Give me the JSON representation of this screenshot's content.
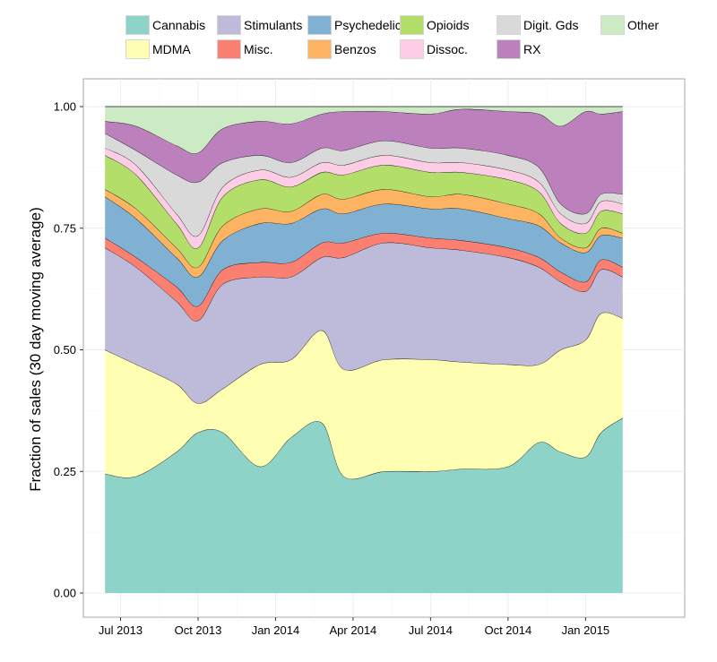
{
  "chart_data": {
    "type": "area",
    "stacked": true,
    "normalized": true,
    "title": "",
    "xlabel": "",
    "ylabel": "Fraction of sales (30 day moving average)",
    "ylim": [
      0,
      1
    ],
    "yticks": [
      0.0,
      0.25,
      0.5,
      0.75,
      1.0
    ],
    "ytick_labels": [
      "0.00",
      "0.25",
      "0.50",
      "0.75",
      "1.00"
    ],
    "xlim": [
      2013.38,
      2015.32
    ],
    "xticks": [
      2013.5,
      2013.75,
      2014.0,
      2014.25,
      2014.5,
      2014.75,
      2015.0
    ],
    "xtick_labels": [
      "Jul 2013",
      "Oct 2013",
      "Jan 2014",
      "Apr 2014",
      "Jul 2014",
      "Oct 2014",
      "Jan 2015"
    ],
    "x": [
      2013.45,
      2013.55,
      2013.68,
      2013.75,
      2013.83,
      2013.95,
      2014.05,
      2014.15,
      2014.22,
      2014.35,
      2014.5,
      2014.6,
      2014.75,
      2014.85,
      2014.92,
      2015.0,
      2015.05,
      2015.12
    ],
    "legend_position": "top",
    "series": [
      {
        "name": "Cannabis",
        "color": "#8dd3c7",
        "values": [
          0.245,
          0.24,
          0.29,
          0.33,
          0.33,
          0.26,
          0.32,
          0.35,
          0.24,
          0.25,
          0.25,
          0.255,
          0.26,
          0.31,
          0.29,
          0.28,
          0.33,
          0.36
        ]
      },
      {
        "name": "MDMA",
        "color": "#ffffb3",
        "values": [
          0.255,
          0.23,
          0.14,
          0.06,
          0.09,
          0.21,
          0.16,
          0.19,
          0.22,
          0.23,
          0.23,
          0.22,
          0.21,
          0.16,
          0.21,
          0.24,
          0.245,
          0.205
        ]
      },
      {
        "name": "Stimulants",
        "color": "#bebada",
        "values": [
          0.21,
          0.2,
          0.17,
          0.17,
          0.215,
          0.18,
          0.17,
          0.15,
          0.23,
          0.24,
          0.23,
          0.23,
          0.22,
          0.2,
          0.14,
          0.1,
          0.09,
          0.085
        ]
      },
      {
        "name": "Misc.",
        "color": "#fb8072",
        "values": [
          0.02,
          0.02,
          0.03,
          0.03,
          0.03,
          0.03,
          0.03,
          0.03,
          0.03,
          0.02,
          0.02,
          0.02,
          0.02,
          0.02,
          0.02,
          0.02,
          0.02,
          0.02
        ]
      },
      {
        "name": "Psychedelics",
        "color": "#80b1d3",
        "values": [
          0.085,
          0.08,
          0.06,
          0.06,
          0.06,
          0.08,
          0.08,
          0.07,
          0.06,
          0.06,
          0.06,
          0.065,
          0.06,
          0.065,
          0.06,
          0.06,
          0.05,
          0.06
        ]
      },
      {
        "name": "Benzos",
        "color": "#fdb462",
        "values": [
          0.015,
          0.02,
          0.02,
          0.02,
          0.03,
          0.03,
          0.025,
          0.03,
          0.03,
          0.03,
          0.025,
          0.03,
          0.03,
          0.025,
          0.01,
          0.01,
          0.015,
          0.01
        ]
      },
      {
        "name": "Opioids",
        "color": "#b3de69",
        "values": [
          0.07,
          0.07,
          0.05,
          0.04,
          0.06,
          0.06,
          0.05,
          0.045,
          0.05,
          0.05,
          0.05,
          0.045,
          0.05,
          0.045,
          0.03,
          0.03,
          0.035,
          0.04
        ]
      },
      {
        "name": "Dissoc.",
        "color": "#fccde5",
        "values": [
          0.015,
          0.02,
          0.02,
          0.025,
          0.02,
          0.02,
          0.02,
          0.02,
          0.02,
          0.02,
          0.02,
          0.02,
          0.02,
          0.02,
          0.02,
          0.02,
          0.02,
          0.02
        ]
      },
      {
        "name": "Digit. Gds",
        "color": "#d9d9d9",
        "values": [
          0.03,
          0.03,
          0.08,
          0.11,
          0.05,
          0.03,
          0.03,
          0.03,
          0.03,
          0.03,
          0.03,
          0.03,
          0.03,
          0.03,
          0.02,
          0.02,
          0.015,
          0.02
        ]
      },
      {
        "name": "RX",
        "color": "#bc80bd",
        "values": [
          0.025,
          0.05,
          0.06,
          0.06,
          0.07,
          0.07,
          0.08,
          0.07,
          0.08,
          0.06,
          0.07,
          0.08,
          0.09,
          0.11,
          0.16,
          0.21,
          0.165,
          0.17
        ]
      },
      {
        "name": "Other",
        "color": "#ccebc5",
        "values": [
          0.03,
          0.04,
          0.07,
          0.085,
          0.035,
          0.02,
          0.015,
          0.015,
          0.01,
          0.01,
          0.015,
          0.005,
          0.01,
          0.015,
          0.02,
          0.01,
          0.015,
          0.01
        ]
      }
    ]
  }
}
